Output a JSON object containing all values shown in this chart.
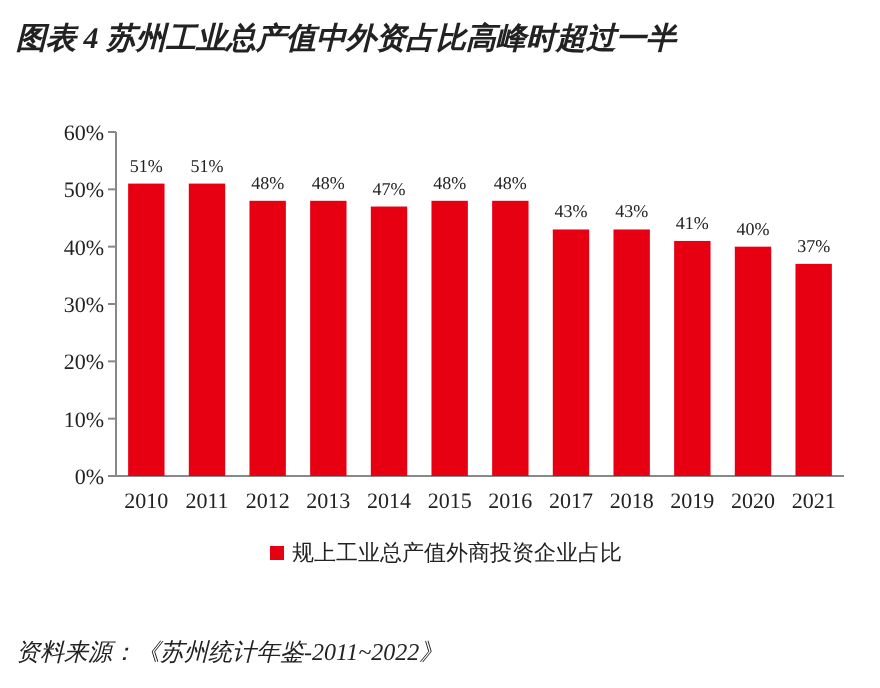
{
  "chart_data": {
    "type": "bar",
    "title": "图表 4   苏州工业总产值中外资占比高峰时超过一半",
    "categories": [
      "2010",
      "2011",
      "2012",
      "2013",
      "2014",
      "2015",
      "2016",
      "2017",
      "2018",
      "2019",
      "2020",
      "2021"
    ],
    "series": [
      {
        "name": "规上工业总产值外商投资企业占比",
        "color": "#e60012",
        "values": [
          51,
          51,
          48,
          48,
          47,
          48,
          48,
          43,
          43,
          41,
          40,
          37
        ],
        "value_labels": [
          "51%",
          "51%",
          "48%",
          "48%",
          "47%",
          "48%",
          "48%",
          "43%",
          "43%",
          "41%",
          "40%",
          "37%"
        ]
      }
    ],
    "ylim": [
      0,
      60
    ],
    "yticks": [
      {
        "value": 0,
        "label": "0%"
      },
      {
        "value": 10,
        "label": "10%"
      },
      {
        "value": 20,
        "label": "20%"
      },
      {
        "value": 30,
        "label": "30%"
      },
      {
        "value": 40,
        "label": "40%"
      },
      {
        "value": 50,
        "label": "50%"
      },
      {
        "value": 60,
        "label": "60%"
      }
    ],
    "legend": "bottom",
    "annotations": [
      "资料来源：《苏州统计年鉴-2011~2022》"
    ]
  }
}
